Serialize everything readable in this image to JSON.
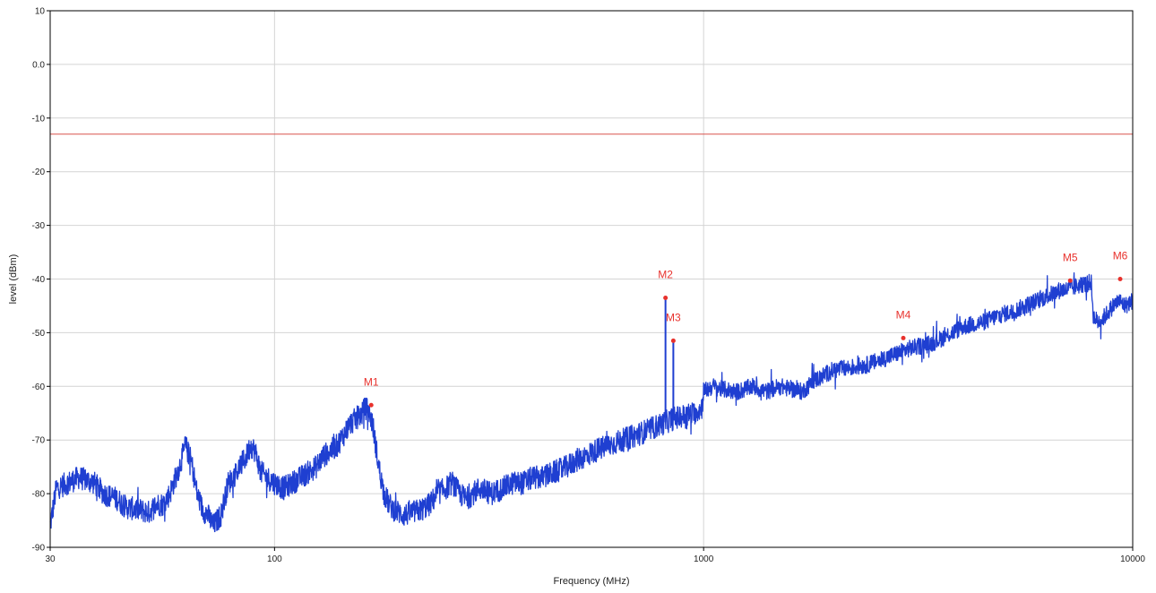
{
  "chart_data": {
    "type": "line",
    "title": "",
    "xlabel": "Frequency (MHz)",
    "ylabel": "level (dBm)",
    "x_scale": "log",
    "xlim": [
      30,
      10000
    ],
    "ylim": [
      -90,
      10
    ],
    "x_ticks": [
      {
        "value": 30,
        "label": "30"
      },
      {
        "value": 100,
        "label": "100"
      },
      {
        "value": 1000,
        "label": "1000"
      },
      {
        "value": 10000,
        "label": "10000"
      }
    ],
    "y_ticks": [
      {
        "value": 10,
        "label": "10"
      },
      {
        "value": 0,
        "label": "0.0"
      },
      {
        "value": -10,
        "label": "-10"
      },
      {
        "value": -20,
        "label": "-20"
      },
      {
        "value": -30,
        "label": "-30"
      },
      {
        "value": -40,
        "label": "-40"
      },
      {
        "value": -50,
        "label": "-50"
      },
      {
        "value": -60,
        "label": "-60"
      },
      {
        "value": -70,
        "label": "-70"
      },
      {
        "value": -80,
        "label": "-80"
      },
      {
        "value": -90,
        "label": "-90"
      }
    ],
    "grid": true,
    "limit_line": {
      "value": -13,
      "color": "#d9534f"
    },
    "series": [
      {
        "color": "#1f3fd1",
        "x": [
          30,
          31,
          33,
          35,
          38,
          40,
          43,
          45,
          48,
          51,
          53,
          55,
          57,
          60,
          62,
          64,
          66,
          68,
          70,
          72,
          75,
          78,
          80,
          83,
          86,
          88,
          90,
          93,
          96,
          100,
          105,
          110,
          115,
          120,
          125,
          130,
          135,
          140,
          145,
          150,
          155,
          160,
          163,
          165,
          168,
          170,
          175,
          180,
          185,
          190,
          200,
          210,
          220,
          230,
          240,
          250,
          260,
          270,
          280,
          290,
          300,
          320,
          340,
          360,
          380,
          400,
          420,
          450,
          480,
          500,
          530,
          560,
          600,
          650,
          700,
          750,
          800,
          850,
          900,
          950,
          990,
          1000,
          1050,
          1100,
          1200,
          1300,
          1400,
          1500,
          1600,
          1700,
          1800,
          1900,
          2000,
          2200,
          2400,
          2600,
          2800,
          3000,
          3200,
          3400,
          3600,
          3800,
          4000,
          4200,
          4500,
          4800,
          5000,
          5300,
          5600,
          6000,
          6400,
          6800,
          7000,
          7300,
          7600,
          7800,
          8000,
          8100,
          8300,
          8600,
          9000,
          9300,
          9600,
          10000
        ],
        "values": [
          -86,
          -79,
          -78,
          -77,
          -78,
          -80,
          -81,
          -82.5,
          -83,
          -83.5,
          -82,
          -82,
          -80,
          -75,
          -71,
          -74,
          -80,
          -83,
          -84,
          -86,
          -84,
          -78,
          -77,
          -75,
          -73,
          -71,
          -72,
          -76,
          -77,
          -78,
          -79,
          -78,
          -77,
          -76,
          -75,
          -73,
          -72,
          -71,
          -69,
          -67,
          -66,
          -65,
          -64,
          -64.5,
          -66,
          -68,
          -75,
          -80,
          -82,
          -83,
          -84,
          -83.5,
          -83,
          -82,
          -80,
          -79,
          -78,
          -80,
          -81,
          -80,
          -79,
          -80,
          -79,
          -78,
          -78,
          -77,
          -77,
          -76,
          -75,
          -74,
          -73,
          -72,
          -71,
          -70,
          -69,
          -68,
          -67,
          -66,
          -65.5,
          -65,
          -64,
          -61,
          -60,
          -60.5,
          -61,
          -60,
          -61,
          -60,
          -60.5,
          -61,
          -59,
          -58,
          -57,
          -56.5,
          -56,
          -55,
          -54,
          -53,
          -52.5,
          -52,
          -51,
          -50,
          -49,
          -48.5,
          -48,
          -47,
          -46.5,
          -46,
          -45,
          -44,
          -43,
          -42,
          -42,
          -41.5,
          -41,
          -41,
          -40.5,
          -47,
          -48,
          -47,
          -45,
          -44,
          -45,
          -44
        ]
      }
    ],
    "spikes": [
      {
        "x": 815,
        "top": -43.5
      },
      {
        "x": 850,
        "top": -51.5
      }
    ],
    "markers": [
      {
        "label": "M1",
        "x": 168,
        "y": -63.5
      },
      {
        "label": "M2",
        "x": 815,
        "y": -43.5
      },
      {
        "label": "M3",
        "x": 850,
        "y": -51.5
      },
      {
        "label": "M4",
        "x": 2920,
        "y": -51
      },
      {
        "label": "M5",
        "x": 7150,
        "y": -40.3
      },
      {
        "label": "M6",
        "x": 9350,
        "y": -40
      }
    ],
    "marker_color": "#e8322d"
  }
}
